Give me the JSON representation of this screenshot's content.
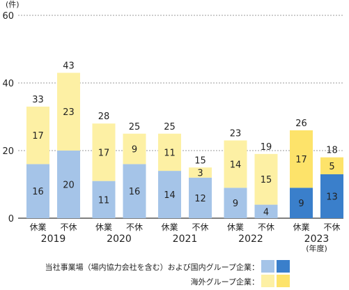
{
  "chart_data": {
    "type": "bar",
    "stacked": true,
    "unit": "(件)",
    "ylim": [
      0,
      60
    ],
    "yticks": [
      0,
      20,
      40,
      60
    ],
    "grid": true,
    "groups": [
      {
        "year": "2019",
        "bars": [
          {
            "label": "休業",
            "domestic": 16,
            "overseas": 17,
            "total": 33
          },
          {
            "label": "不休",
            "domestic": 20,
            "overseas": 23,
            "total": 43
          }
        ]
      },
      {
        "year": "2020",
        "bars": [
          {
            "label": "休業",
            "domestic": 11,
            "overseas": 17,
            "total": 28
          },
          {
            "label": "不休",
            "domestic": 16,
            "overseas": 9,
            "total": 25
          }
        ]
      },
      {
        "year": "2021",
        "bars": [
          {
            "label": "休業",
            "domestic": 14,
            "overseas": 11,
            "total": 25
          },
          {
            "label": "不休",
            "domestic": 12,
            "overseas": 3,
            "total": 15
          }
        ]
      },
      {
        "year": "2022",
        "bars": [
          {
            "label": "休業",
            "domestic": 9,
            "overseas": 14,
            "total": 23
          },
          {
            "label": "不休",
            "domestic": 4,
            "overseas": 15,
            "total": 19
          }
        ]
      },
      {
        "year": "2023",
        "highlight": true,
        "bars": [
          {
            "label": "休業",
            "domestic": 9,
            "overseas": 17,
            "total": 26
          },
          {
            "label": "不休",
            "domestic": 13,
            "overseas": 5,
            "total": 18
          }
        ]
      }
    ],
    "year_suffix": "(年度)",
    "legend": {
      "placement": "bottom-right",
      "items": [
        {
          "label": "当社事業場（場内協力会社を含む）および国内グループ企業：",
          "colors": [
            "#a5c4e8",
            "#3a7fcb"
          ]
        },
        {
          "label": "海外グループ企業：",
          "colors": [
            "#fdf0a4",
            "#fde36a"
          ]
        }
      ]
    },
    "colors": {
      "domestic": "#a5c4e8",
      "domestic_highlight": "#3a7fcb",
      "overseas": "#fdf0a4",
      "overseas_highlight": "#fde36a"
    }
  }
}
